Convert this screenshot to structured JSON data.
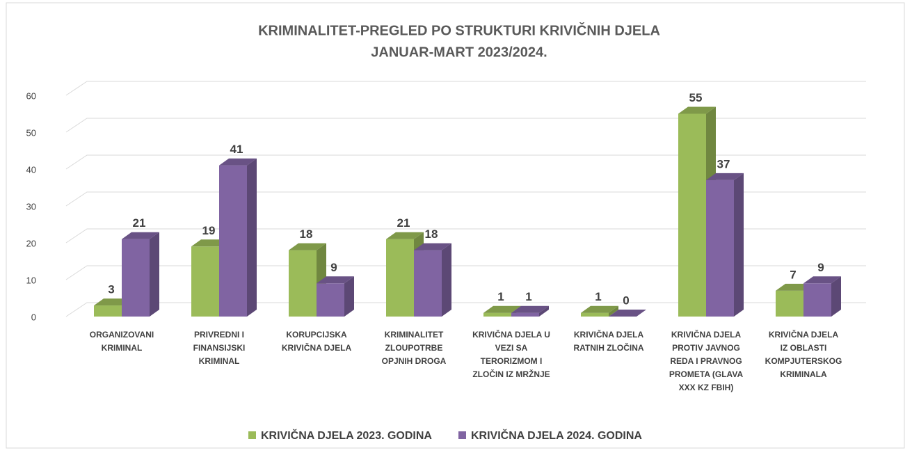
{
  "chart_data": {
    "type": "bar3d",
    "title": [
      "KRIMINALITET-PREGLED PO STRUKTURI KRIVIČNIH DJELA",
      "JANUAR-MART 2023/2024."
    ],
    "categories": [
      "ORGANIZOVANI KRIMINAL",
      "PRIVREDNI I FINANSIJSKI KRIMINAL",
      "KORUPCIJSKA KRIVIČNA DJELA",
      "KRIMINALITET ZLOUPOTRBE OPJNIH DROGA",
      "KRIVIČNA DJELA U VEZI SA TERORIZMOM I ZLOČIN IZ MRŽNJE",
      "KRIVIČNA DJELA RATNIH ZLOČINA",
      "KRIVIČNA DJELA PROTIV JAVNOG REDA  I PRAVNOG PROMETA (GLAVA XXX KZ FBIH)",
      "KRIVIČNA DJELA IZ OBLASTI KOMPJUTERSKOG KRIMINALA"
    ],
    "series": [
      {
        "name": "KRIVIČNA DJELA 2023. GODINA",
        "color": "#9bbb59",
        "values": [
          3,
          19,
          18,
          21,
          1,
          1,
          55,
          7
        ]
      },
      {
        "name": "KRIVIČNA DJELA 2024. GODINA",
        "color": "#8064a2",
        "values": [
          21,
          41,
          9,
          18,
          1,
          0,
          37,
          9
        ]
      }
    ],
    "ylim": [
      0,
      60
    ],
    "yticks": [
      0,
      10,
      20,
      30,
      40,
      50,
      60
    ],
    "grid": true,
    "legend": "bottom"
  }
}
